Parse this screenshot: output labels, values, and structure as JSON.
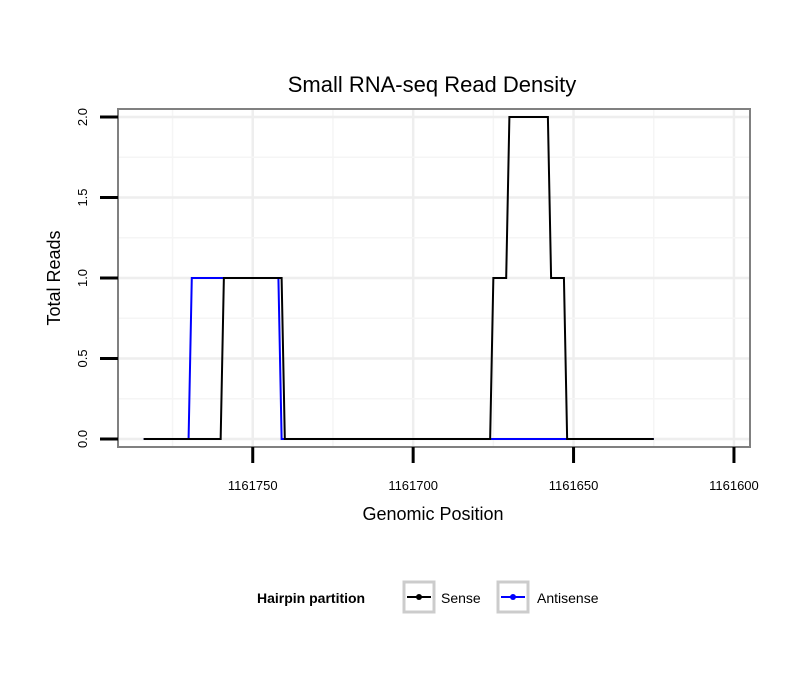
{
  "chart_data": {
    "type": "line",
    "title": "Small RNA-seq Read Density",
    "xlabel": "Genomic Position",
    "ylabel": "Total Reads",
    "x_reversed": true,
    "xlim": [
      1161792,
      1161595
    ],
    "ylim": [
      -0.05,
      2.05
    ],
    "x_ticks": [
      1161750,
      1161700,
      1161650,
      1161600
    ],
    "x_tick_labels": [
      "1161750",
      "1161700",
      "1161650",
      "1161600"
    ],
    "y_ticks": [
      0,
      0.5,
      1,
      1.5,
      2
    ],
    "y_tick_labels": [
      "0.0",
      "0.5",
      "1.0",
      "1.5",
      "2.0"
    ],
    "grid": true,
    "legend": {
      "title": "Hairpin partition",
      "position": "bottom"
    },
    "series": [
      {
        "name": "Sense",
        "color": "#000000",
        "x": [
          1161784,
          1161760,
          1161759,
          1161741,
          1161740,
          1161676,
          1161675,
          1161671,
          1161670,
          1161658,
          1161657,
          1161653,
          1161652,
          1161625
        ],
        "y": [
          0,
          0,
          1,
          1,
          0,
          0,
          1,
          1,
          2,
          2,
          1,
          1,
          0,
          0
        ]
      },
      {
        "name": "Antisense",
        "color": "#0000ff",
        "x": [
          1161784,
          1161770,
          1161769,
          1161742,
          1161741,
          1161625
        ],
        "y": [
          0,
          0,
          1,
          1,
          0,
          0
        ]
      }
    ]
  }
}
